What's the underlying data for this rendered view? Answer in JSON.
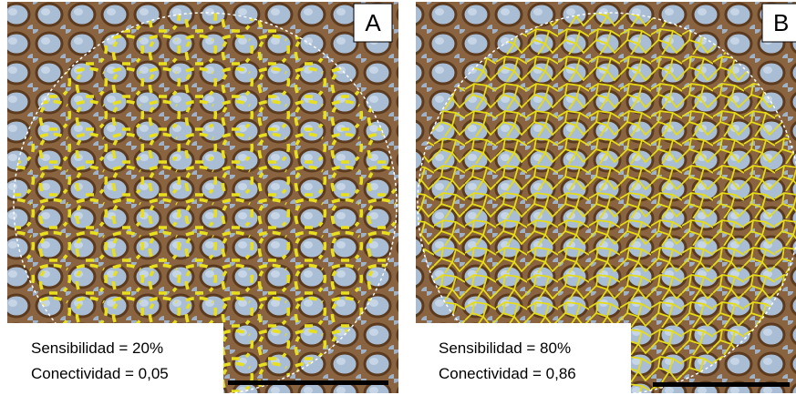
{
  "panels": [
    {
      "label": "A",
      "caption": [
        "Sensibilidad = 20%",
        "Conectividad = 0,05"
      ]
    },
    {
      "label": "B",
      "caption": [
        "Sensibilidad = 80%",
        "Conectividad = 0,86"
      ]
    }
  ]
}
